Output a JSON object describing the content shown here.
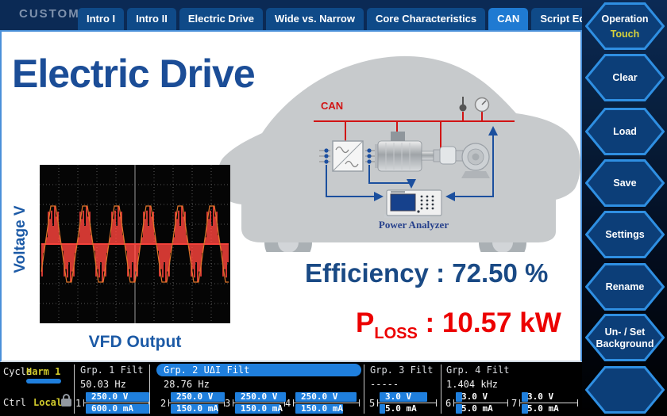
{
  "app": {
    "brand": "CUSTOM"
  },
  "topbar": {
    "tabs": [
      {
        "label": "Intro I"
      },
      {
        "label": "Intro II"
      },
      {
        "label": "Electric Drive"
      },
      {
        "label": "Wide vs. Narrow"
      },
      {
        "label": "Core Characteristics"
      },
      {
        "label": "CAN"
      },
      {
        "label": "Script Editor"
      }
    ]
  },
  "sidebar": {
    "buttons": [
      {
        "line1": "Operation",
        "line2": "Touch"
      },
      {
        "line1": "Clear",
        "line2": ""
      },
      {
        "line1": "Load",
        "line2": ""
      },
      {
        "line1": "Save",
        "line2": ""
      },
      {
        "line1": "Settings",
        "line2": ""
      },
      {
        "line1": "Rename",
        "line2": ""
      },
      {
        "line1": "Un- / Set",
        "line2": "Background"
      },
      {
        "line1": "",
        "line2": ""
      }
    ]
  },
  "main": {
    "title": "Electric Drive",
    "diagram": {
      "bus_label": "CAN",
      "analyzer_label": "Power Analyzer"
    },
    "scope": {
      "ylabel": "Voltage V",
      "caption": "VFD Output"
    },
    "efficiency": {
      "label": "Efficiency",
      "sep": " : ",
      "value": "72.50 %"
    },
    "ploss": {
      "symbol": "P",
      "subscript": "LOSS",
      "sep": " : ",
      "value": "10.57 kW"
    }
  },
  "statusbar": {
    "cycle": {
      "label": "Cycle",
      "value": "Harm 1"
    },
    "ctrl": {
      "label": "Ctrl",
      "value": "Local"
    },
    "groups": [
      {
        "header": "Grp. 1 Filt",
        "freq": "50.03 Hz"
      },
      {
        "header": "Grp. 2 UΔI Filt",
        "freq": "28.76 Hz"
      },
      {
        "header": "Grp. 3 Filt",
        "freq": "-----"
      },
      {
        "header": "Grp. 4 Filt",
        "freq": "1.404 kHz"
      }
    ],
    "channels": [
      {
        "num": "1",
        "v": "250.0 V",
        "a": "600.0 mA"
      },
      {
        "num": "2",
        "v": "250.0 V",
        "a": "150.0 mA"
      },
      {
        "num": "3",
        "v": "250.0 V",
        "a": "150.0 mA"
      },
      {
        "num": "4",
        "v": "250.0 V",
        "a": "150.0 mA"
      },
      {
        "num": "5",
        "v": "3.0 V",
        "a": "5.0 mA"
      },
      {
        "num": "6",
        "v": "3.0 V",
        "a": "5.0 mA"
      },
      {
        "num": "7",
        "v": "3.0 V",
        "a": "5.0 mA"
      }
    ]
  },
  "scope_wave": {
    "color": "#f5413a",
    "envelope_color": "#e0762a",
    "cycles": 6
  },
  "colors": {
    "accent_blue": "#1f7fdd",
    "selected_tab": "#1f7ad2",
    "status_yellow": "#d2cb2c",
    "alert_red": "#ec0000",
    "title_blue": "#1b4d97"
  }
}
